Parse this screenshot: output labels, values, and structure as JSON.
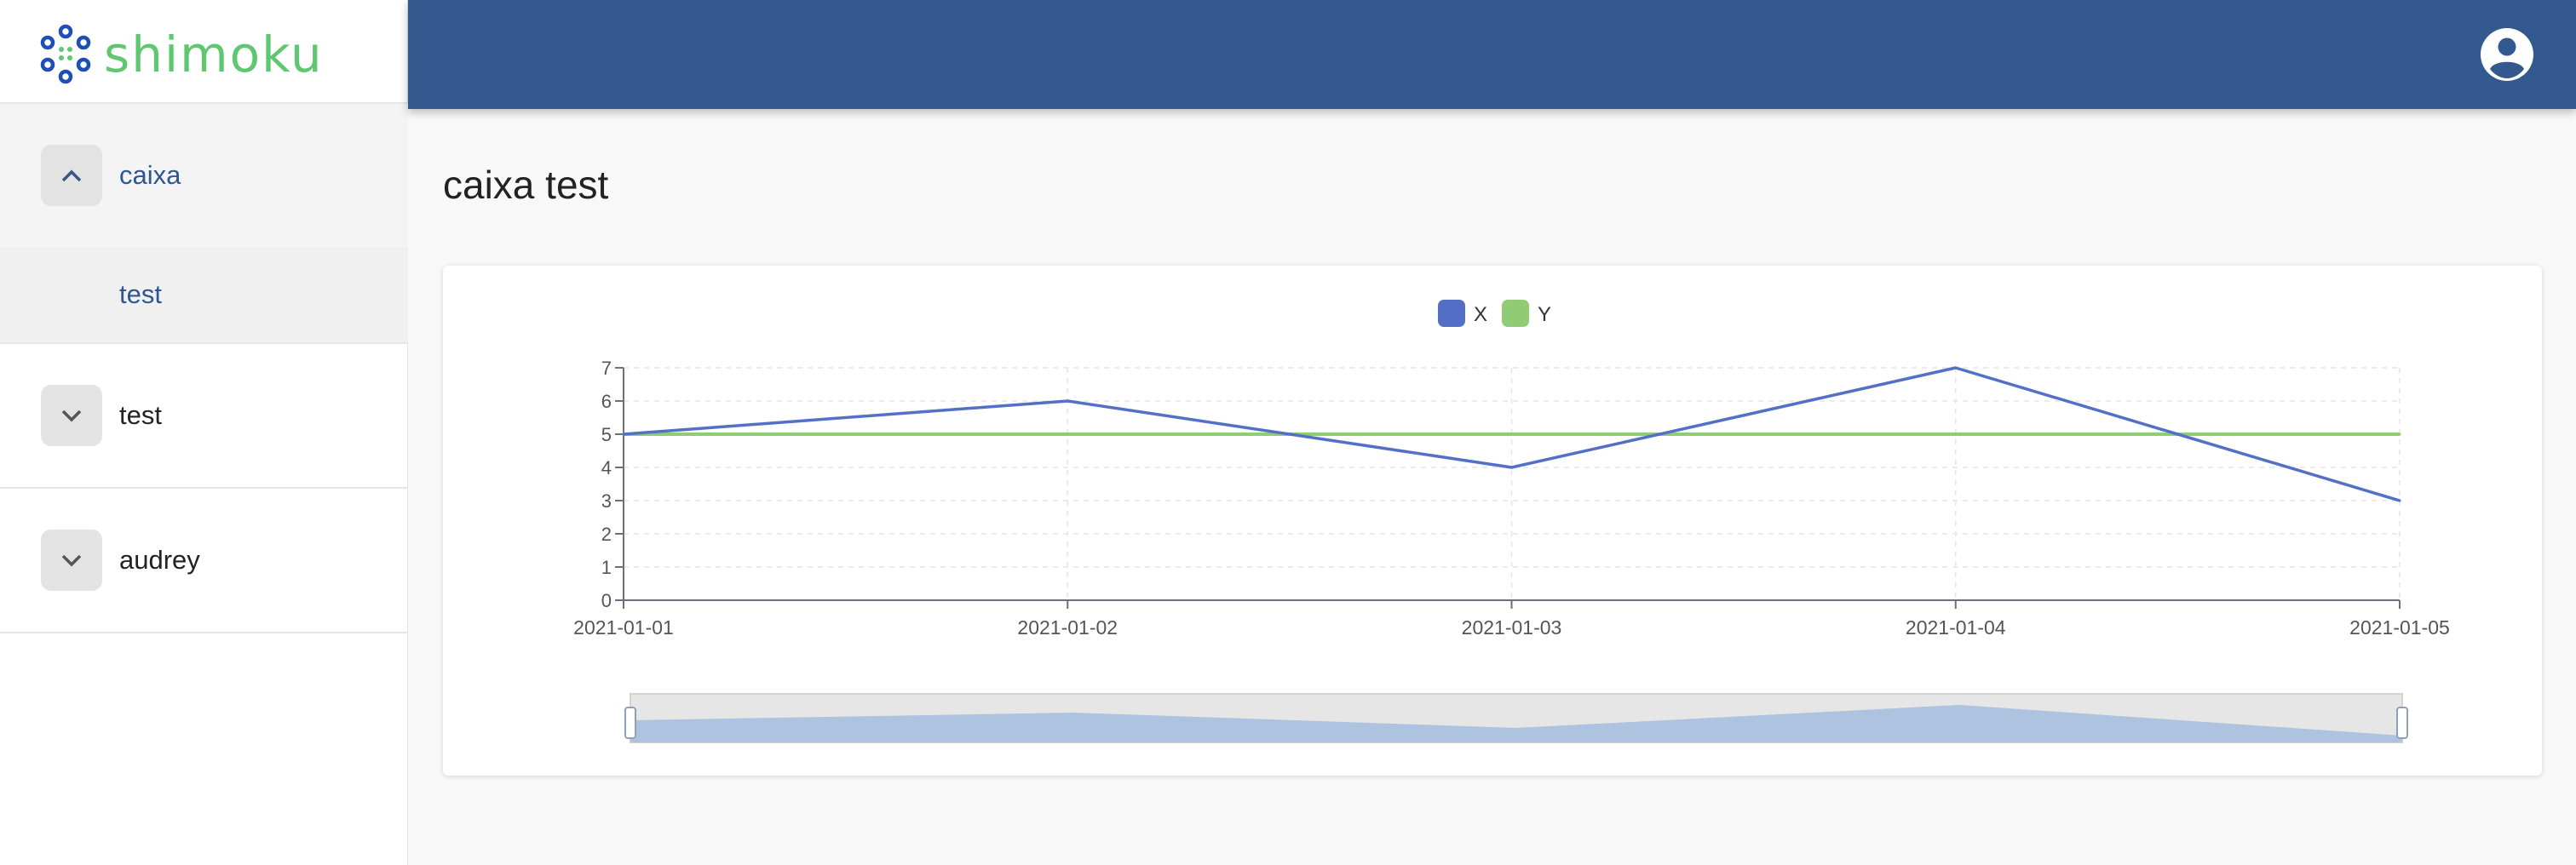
{
  "app": {
    "brand": "shimoku"
  },
  "sidebar": {
    "sections": [
      {
        "label": "caixa",
        "expanded": true,
        "children": [
          {
            "label": "test"
          }
        ]
      },
      {
        "label": "test",
        "expanded": false,
        "children": []
      },
      {
        "label": "audrey",
        "expanded": false,
        "children": []
      }
    ]
  },
  "header": {
    "account_icon": "account-circle-icon"
  },
  "main": {
    "title": "caixa test"
  },
  "colors": {
    "header_bg": "#33598f",
    "brand_green": "#5ec770",
    "brand_blue": "#1e4fb4",
    "series_x": "#5470c6",
    "series_y": "#91cc75",
    "nav_active_text": "#2f5595"
  },
  "chart_data": {
    "type": "line",
    "x": [
      "2021-01-01",
      "2021-01-02",
      "2021-01-03",
      "2021-01-04",
      "2021-01-05"
    ],
    "series": [
      {
        "name": "X",
        "values": [
          5,
          6,
          4,
          7,
          3
        ],
        "color": "#5470c6"
      },
      {
        "name": "Y",
        "values": [
          5,
          5,
          5,
          5,
          5
        ],
        "color": "#91cc75"
      }
    ],
    "ylim": [
      0,
      7
    ],
    "yticks": [
      0,
      1,
      2,
      3,
      4,
      5,
      6,
      7
    ],
    "grid": true,
    "legend": "top-center",
    "data_zoom": {
      "visible": true,
      "range": [
        0,
        100
      ]
    }
  }
}
